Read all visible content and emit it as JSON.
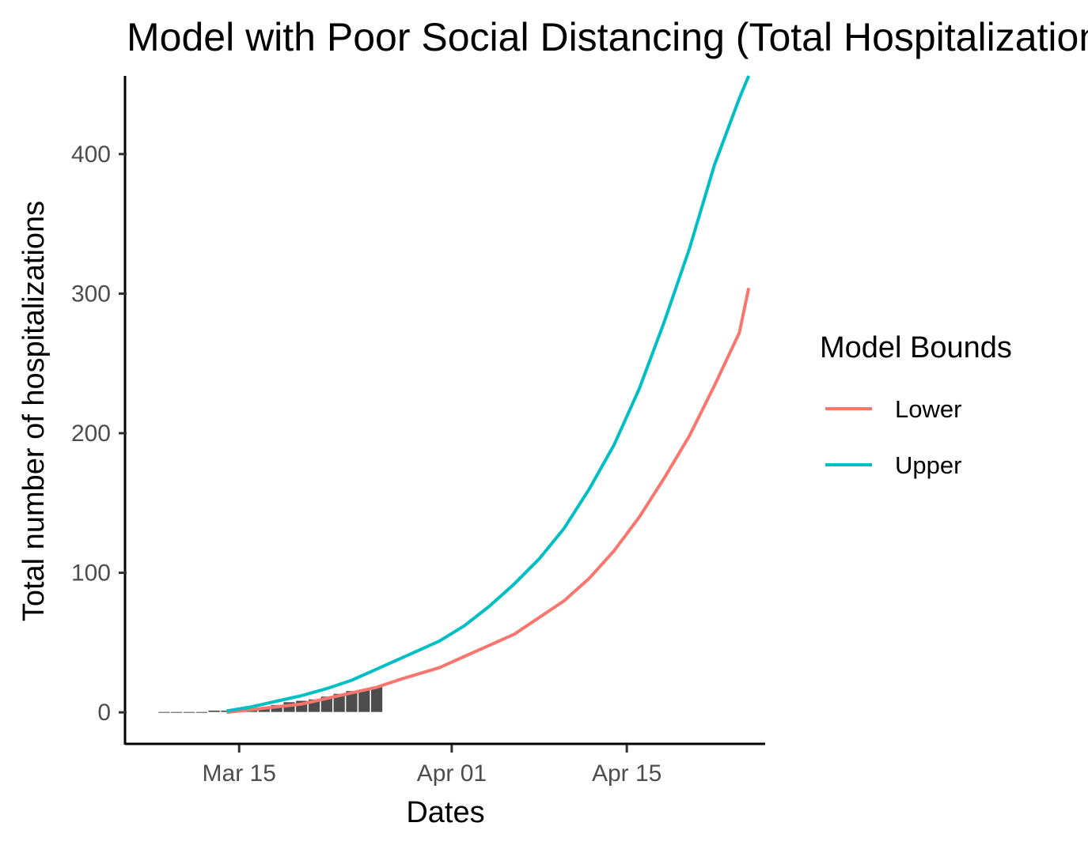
{
  "chart_data": {
    "type": "line",
    "title": "Model with Poor Social Distancing (Total Hospitalizations)",
    "xlabel": "Dates",
    "ylabel": "Total number of hospitalizations",
    "x_axis": {
      "type": "date",
      "range": [
        "2020-03-06",
        "2020-04-26"
      ],
      "ticks": [
        {
          "date": "2020-03-15",
          "label": "Mar 15"
        },
        {
          "date": "2020-04-01",
          "label": "Apr 01"
        },
        {
          "date": "2020-04-15",
          "label": "Apr 15"
        }
      ]
    },
    "y_axis": {
      "range": [
        -22,
        456
      ],
      "ticks": [
        0,
        100,
        200,
        300,
        400
      ]
    },
    "grid": false,
    "legend": {
      "title": "Model Bounds",
      "position": "right",
      "entries": [
        {
          "label": "Lower",
          "color": "#F8766D"
        },
        {
          "label": "Upper",
          "color": "#00BFC4"
        }
      ]
    },
    "observed_bars": {
      "color": "#4d4d4d",
      "points": [
        {
          "date": "2020-03-09",
          "value": 0
        },
        {
          "date": "2020-03-10",
          "value": 0
        },
        {
          "date": "2020-03-11",
          "value": 0
        },
        {
          "date": "2020-03-12",
          "value": 0
        },
        {
          "date": "2020-03-13",
          "value": 1
        },
        {
          "date": "2020-03-14",
          "value": 1
        },
        {
          "date": "2020-03-15",
          "value": 1
        },
        {
          "date": "2020-03-16",
          "value": 2
        },
        {
          "date": "2020-03-17",
          "value": 3
        },
        {
          "date": "2020-03-18",
          "value": 5
        },
        {
          "date": "2020-03-19",
          "value": 7
        },
        {
          "date": "2020-03-20",
          "value": 8
        },
        {
          "date": "2020-03-21",
          "value": 9
        },
        {
          "date": "2020-03-22",
          "value": 11
        },
        {
          "date": "2020-03-23",
          "value": 13
        },
        {
          "date": "2020-03-24",
          "value": 15
        },
        {
          "date": "2020-03-25",
          "value": 16
        },
        {
          "date": "2020-03-26",
          "value": 18
        }
      ]
    },
    "series": [
      {
        "name": "Lower",
        "color": "#F8766D",
        "points": [
          {
            "date": "2020-03-14",
            "value": 0
          },
          {
            "date": "2020-03-16",
            "value": 2
          },
          {
            "date": "2020-03-18",
            "value": 4
          },
          {
            "date": "2020-03-20",
            "value": 6
          },
          {
            "date": "2020-03-22",
            "value": 10
          },
          {
            "date": "2020-03-24",
            "value": 14
          },
          {
            "date": "2020-03-26",
            "value": 18
          },
          {
            "date": "2020-03-28",
            "value": 24
          },
          {
            "date": "2020-03-31",
            "value": 32
          },
          {
            "date": "2020-04-02",
            "value": 40
          },
          {
            "date": "2020-04-04",
            "value": 48
          },
          {
            "date": "2020-04-06",
            "value": 56
          },
          {
            "date": "2020-04-08",
            "value": 68
          },
          {
            "date": "2020-04-10",
            "value": 80
          },
          {
            "date": "2020-04-12",
            "value": 96
          },
          {
            "date": "2020-04-14",
            "value": 116
          },
          {
            "date": "2020-04-16",
            "value": 140
          },
          {
            "date": "2020-04-18",
            "value": 168
          },
          {
            "date": "2020-04-20",
            "value": 198
          },
          {
            "date": "2020-04-22",
            "value": 234
          },
          {
            "date": "2020-04-24",
            "value": 272
          },
          {
            "date": "2020-04-24T18:00",
            "value": 304
          }
        ]
      },
      {
        "name": "Upper",
        "color": "#00BFC4",
        "points": [
          {
            "date": "2020-03-14",
            "value": 1
          },
          {
            "date": "2020-03-16",
            "value": 4
          },
          {
            "date": "2020-03-18",
            "value": 8
          },
          {
            "date": "2020-03-20",
            "value": 12
          },
          {
            "date": "2020-03-22",
            "value": 17
          },
          {
            "date": "2020-03-24",
            "value": 23
          },
          {
            "date": "2020-03-26",
            "value": 31
          },
          {
            "date": "2020-03-28",
            "value": 39
          },
          {
            "date": "2020-03-31",
            "value": 51
          },
          {
            "date": "2020-04-02",
            "value": 62
          },
          {
            "date": "2020-04-04",
            "value": 76
          },
          {
            "date": "2020-04-06",
            "value": 92
          },
          {
            "date": "2020-04-08",
            "value": 110
          },
          {
            "date": "2020-04-10",
            "value": 132
          },
          {
            "date": "2020-04-12",
            "value": 160
          },
          {
            "date": "2020-04-14",
            "value": 192
          },
          {
            "date": "2020-04-16",
            "value": 232
          },
          {
            "date": "2020-04-18",
            "value": 280
          },
          {
            "date": "2020-04-20",
            "value": 332
          },
          {
            "date": "2020-04-22",
            "value": 392
          },
          {
            "date": "2020-04-24",
            "value": 440
          },
          {
            "date": "2020-04-24T18:00",
            "value": 456
          }
        ]
      }
    ]
  }
}
